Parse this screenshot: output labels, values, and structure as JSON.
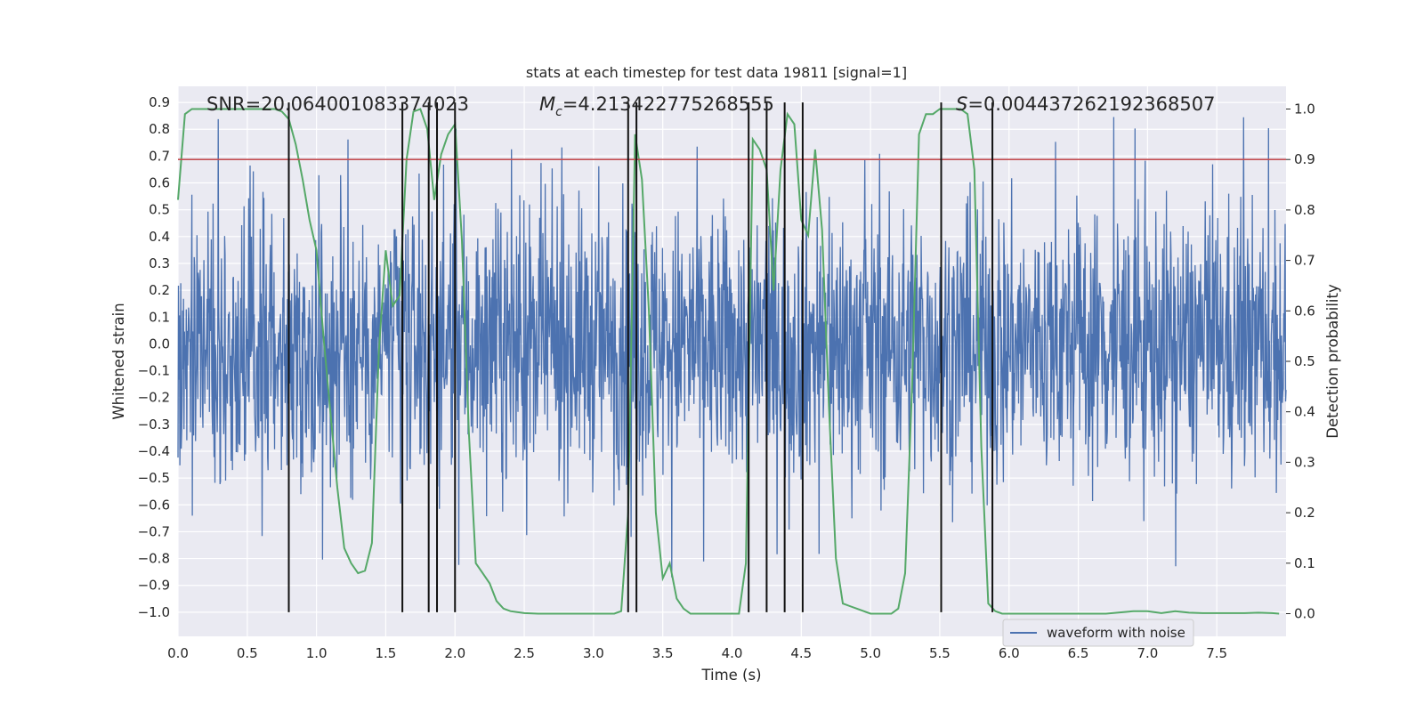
{
  "chart_data": {
    "type": "line",
    "title": "stats at each timestep for test data 19811 [signal=1]",
    "xlabel": "Time (s)",
    "ylabel": "Whitened strain",
    "y2label": "Detection probability",
    "xlim": [
      0.0,
      8.0
    ],
    "ylim": [
      -1.09,
      0.96
    ],
    "y2lim": [
      -0.045,
      1.045
    ],
    "xticks": [
      "0.0",
      "0.5",
      "1.0",
      "1.5",
      "2.0",
      "2.5",
      "3.0",
      "3.5",
      "4.0",
      "4.5",
      "5.0",
      "5.5",
      "6.0",
      "6.5",
      "7.0",
      "7.5"
    ],
    "yticks": [
      "0.9",
      "0.8",
      "0.7",
      "0.6",
      "0.5",
      "0.4",
      "0.3",
      "0.2",
      "0.1",
      "0.0",
      "-0.1",
      "-0.2",
      "-0.3",
      "-0.4",
      "-0.5",
      "-0.6",
      "-0.7",
      "-0.8",
      "-0.9",
      "-1.0"
    ],
    "y2ticks": [
      "1.0",
      "0.9",
      "0.8",
      "0.7",
      "0.6",
      "0.5",
      "0.4",
      "0.3",
      "0.2",
      "0.1",
      "0.0"
    ],
    "grid": true,
    "legend_placement": "lower-right",
    "annotations": {
      "snr_prefix": "SNR=",
      "snr_value": "20.064001083374023",
      "mc_symbol": "M",
      "mc_sub": "c",
      "mc_value": "=4.213422775268555",
      "s_symbol": "S",
      "s_value": "=0.004437262192368507"
    },
    "series": [
      {
        "name": "waveform with noise",
        "axis": "left",
        "color": "#4c72b0",
        "kind": "noisy-strain",
        "typical_range": [
          -0.45,
          0.5
        ],
        "peak_range": [
          -0.9,
          0.85
        ]
      },
      {
        "axis": "right",
        "color": "#55a868",
        "kind": "detection-probability",
        "x": [
          0.0,
          0.05,
          0.1,
          0.15,
          0.2,
          0.3,
          0.4,
          0.5,
          0.6,
          0.7,
          0.75,
          0.8,
          0.85,
          0.9,
          0.95,
          1.0,
          1.05,
          1.1,
          1.15,
          1.2,
          1.25,
          1.3,
          1.35,
          1.4,
          1.45,
          1.5,
          1.55,
          1.6,
          1.65,
          1.7,
          1.75,
          1.8,
          1.85,
          1.9,
          1.95,
          2.0,
          2.05,
          2.1,
          2.15,
          2.2,
          2.25,
          2.3,
          2.35,
          2.4,
          2.5,
          2.6,
          2.7,
          2.8,
          2.9,
          3.0,
          3.1,
          3.15,
          3.2,
          3.25,
          3.3,
          3.35,
          3.4,
          3.45,
          3.5,
          3.55,
          3.6,
          3.65,
          3.7,
          3.8,
          3.9,
          4.0,
          4.05,
          4.1,
          4.15,
          4.2,
          4.25,
          4.3,
          4.35,
          4.4,
          4.45,
          4.5,
          4.55,
          4.6,
          4.65,
          4.7,
          4.75,
          4.8,
          4.85,
          4.9,
          5.0,
          5.05,
          5.1,
          5.15,
          5.2,
          5.25,
          5.3,
          5.35,
          5.4,
          5.45,
          5.5,
          5.55,
          5.6,
          5.65,
          5.7,
          5.75,
          5.8,
          5.85,
          5.9,
          5.95,
          6.0,
          6.05,
          6.1,
          6.15,
          6.2,
          6.3,
          6.5,
          6.7,
          6.9,
          7.0,
          7.1,
          7.2,
          7.3,
          7.4,
          7.5,
          7.6,
          7.7,
          7.8,
          7.9,
          7.95
        ],
        "y": [
          0.82,
          0.99,
          1.0,
          1.0,
          1.0,
          1.0,
          1.0,
          1.0,
          1.0,
          1.0,
          0.995,
          0.98,
          0.93,
          0.86,
          0.78,
          0.72,
          0.55,
          0.4,
          0.25,
          0.13,
          0.1,
          0.08,
          0.085,
          0.14,
          0.52,
          0.72,
          0.61,
          0.63,
          0.9,
          0.995,
          1.0,
          0.96,
          0.82,
          0.91,
          0.95,
          0.97,
          0.74,
          0.36,
          0.1,
          0.08,
          0.06,
          0.025,
          0.01,
          0.005,
          0.001,
          0.0,
          0.0,
          0.0,
          0.0,
          0.0,
          0.0,
          0.0,
          0.005,
          0.2,
          0.95,
          0.86,
          0.6,
          0.2,
          0.07,
          0.1,
          0.03,
          0.01,
          0.0,
          0.0,
          0.0,
          0.0,
          0.0,
          0.1,
          0.94,
          0.92,
          0.88,
          0.64,
          0.88,
          0.99,
          0.97,
          0.78,
          0.75,
          0.92,
          0.76,
          0.41,
          0.11,
          0.02,
          0.015,
          0.01,
          0.0,
          0.0,
          0.0,
          0.0,
          0.01,
          0.08,
          0.45,
          0.95,
          0.99,
          0.99,
          1.0,
          1.0,
          1.0,
          1.0,
          0.99,
          0.88,
          0.33,
          0.02,
          0.005,
          0.0,
          0.0,
          0.0,
          0.0,
          0.0,
          0.0,
          0.0,
          0.0,
          0.0,
          0.005,
          0.005,
          0.001,
          0.005,
          0.002,
          0.001,
          0.001,
          0.001,
          0.001,
          0.002,
          0.001,
          0.0
        ]
      },
      {
        "axis": "right",
        "color": "#c44e52",
        "kind": "threshold",
        "y": 0.9
      },
      {
        "axis": "left",
        "color": "#111111",
        "kind": "vertical-markers",
        "x": [
          0.8,
          1.62,
          1.81,
          1.87,
          2.0,
          3.25,
          3.31,
          4.12,
          4.25,
          4.38,
          4.51,
          5.51,
          5.88
        ],
        "y_range": [
          -1.0,
          0.9
        ]
      }
    ]
  }
}
